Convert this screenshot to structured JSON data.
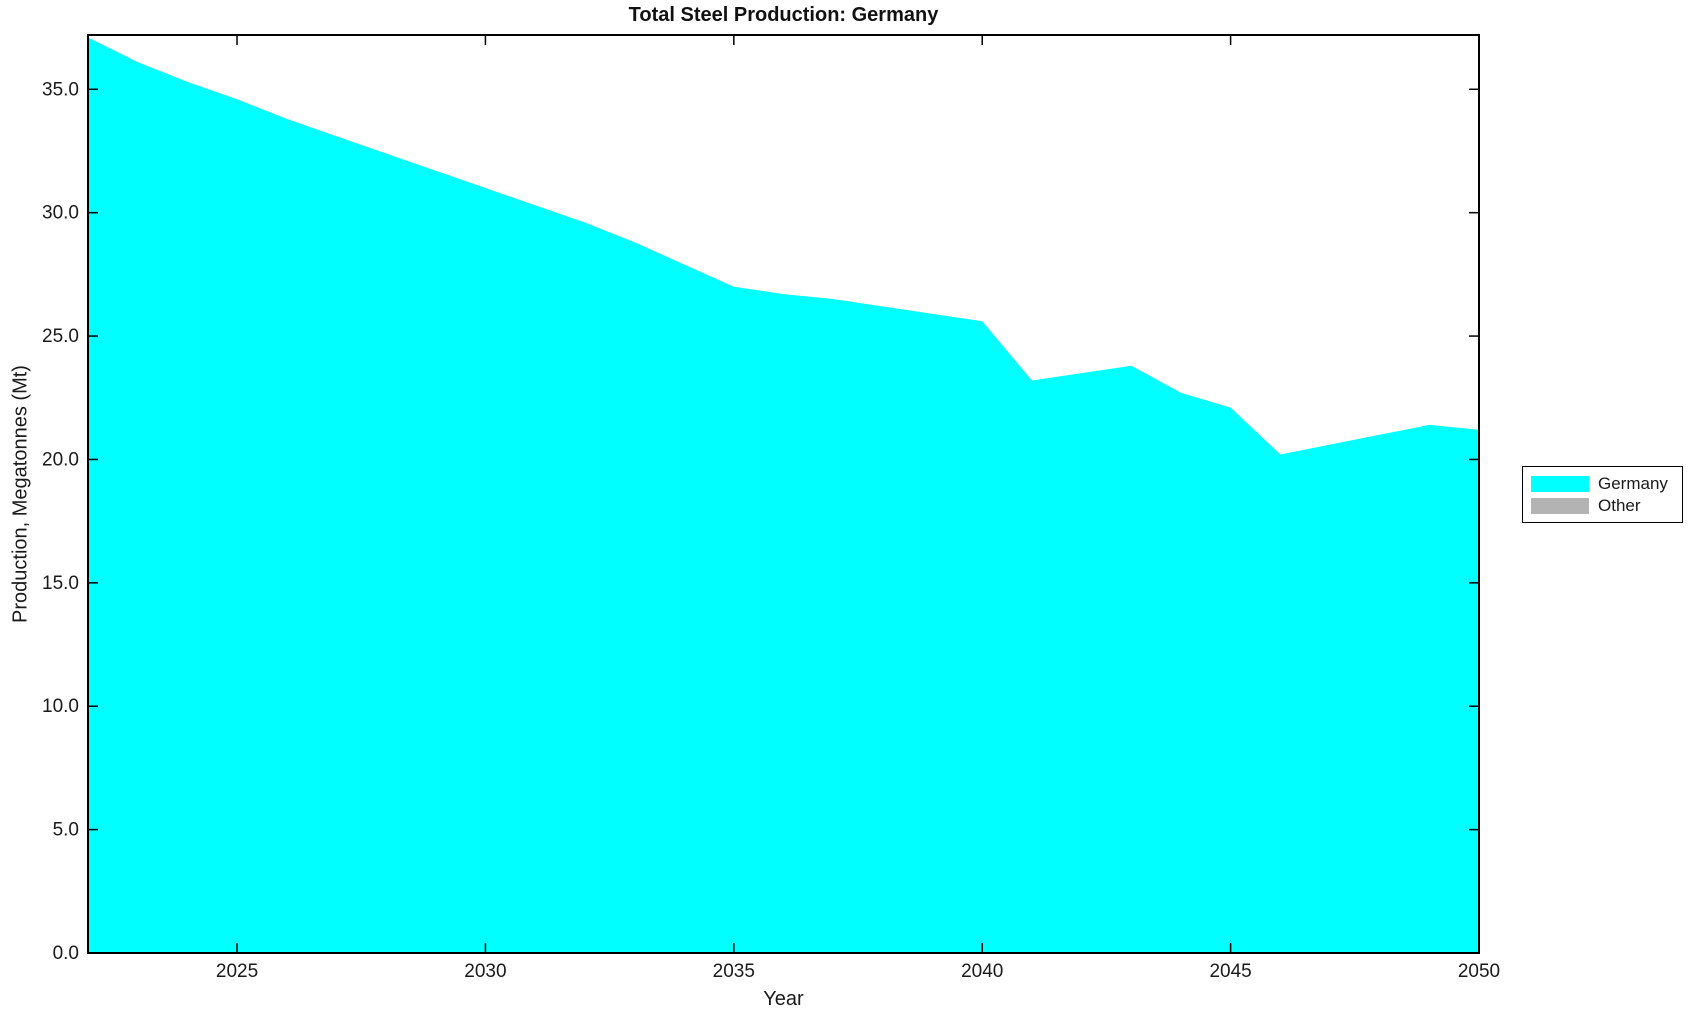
{
  "chart_data": {
    "type": "area",
    "title": "Total Steel Production: Germany",
    "xlabel": "Year",
    "ylabel": "Production, Megatonnes (Mt)",
    "xlim": [
      2022,
      2050
    ],
    "ylim": [
      0,
      37.2
    ],
    "grid": false,
    "background": "#ffffff",
    "spine_color": "#000000",
    "x_ticks": [
      2025,
      2030,
      2035,
      2040,
      2045,
      2050
    ],
    "x_tick_labels": [
      "2025",
      "2030",
      "2035",
      "2040",
      "2045",
      "2050"
    ],
    "y_ticks": [
      0,
      5,
      10,
      15,
      20,
      25,
      30,
      35
    ],
    "y_tick_labels": [
      "0.0",
      "5.0",
      "10.0",
      "15.0",
      "20.0",
      "25.0",
      "30.0",
      "35.0"
    ],
    "x": [
      2022,
      2023,
      2024,
      2025,
      2026,
      2027,
      2028,
      2029,
      2030,
      2031,
      2032,
      2033,
      2034,
      2035,
      2036,
      2037,
      2038,
      2039,
      2040,
      2041,
      2042,
      2043,
      2044,
      2045,
      2046,
      2047,
      2048,
      2049,
      2050
    ],
    "series": [
      {
        "name": "Germany",
        "color": "#00ffff",
        "values": [
          37.1,
          36.1,
          35.3,
          34.6,
          33.8,
          33.1,
          32.4,
          31.7,
          31.0,
          30.3,
          29.6,
          28.8,
          27.9,
          27.0,
          26.7,
          26.5,
          26.2,
          25.9,
          25.6,
          23.2,
          23.5,
          23.8,
          22.7,
          22.1,
          20.2,
          20.6,
          21.0,
          21.4,
          21.2
        ]
      },
      {
        "name": "Other",
        "color": "#b3b3b3",
        "values": [
          0,
          0,
          0,
          0,
          0,
          0,
          0,
          0,
          0,
          0,
          0,
          0,
          0,
          0,
          0,
          0,
          0,
          0,
          0,
          0,
          0,
          0,
          0,
          0,
          0,
          0,
          0,
          0,
          0
        ]
      }
    ],
    "legend": {
      "position": "right-outside",
      "entries": [
        {
          "label": "Germany",
          "color": "#00ffff"
        },
        {
          "label": "Other",
          "color": "#b3b3b3"
        }
      ]
    }
  }
}
